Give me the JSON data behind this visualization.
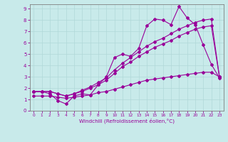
{
  "xlabel": "Windchill (Refroidissement éolien,°C)",
  "bg_color": "#c8eaea",
  "grid_color": "#b0d8d8",
  "line_color": "#990099",
  "xlim": [
    -0.5,
    23.5
  ],
  "ylim": [
    0,
    9.4
  ],
  "xticks": [
    0,
    1,
    2,
    3,
    4,
    5,
    6,
    7,
    8,
    9,
    10,
    11,
    12,
    13,
    14,
    15,
    16,
    17,
    18,
    19,
    20,
    21,
    22,
    23
  ],
  "yticks": [
    0,
    1,
    2,
    3,
    4,
    5,
    6,
    7,
    8,
    9
  ],
  "line1_x": [
    0,
    1,
    2,
    3,
    4,
    5,
    6,
    7,
    8,
    9,
    10,
    11,
    12,
    13,
    14,
    15,
    16,
    17,
    18,
    19,
    20,
    21,
    22,
    23
  ],
  "line1_y": [
    1.7,
    1.7,
    1.5,
    0.9,
    0.6,
    1.3,
    1.5,
    1.4,
    2.3,
    3.0,
    4.7,
    5.0,
    4.8,
    5.5,
    7.5,
    8.1,
    8.0,
    7.6,
    9.2,
    8.2,
    7.6,
    5.8,
    4.1,
    2.9
  ],
  "line2_x": [
    0,
    1,
    2,
    3,
    4,
    5,
    6,
    7,
    8,
    9,
    10,
    11,
    12,
    13,
    14,
    15,
    16,
    17,
    18,
    19,
    20,
    21,
    22,
    23
  ],
  "line2_y": [
    1.7,
    1.7,
    1.7,
    1.5,
    1.3,
    1.5,
    1.8,
    2.1,
    2.5,
    2.9,
    3.6,
    4.2,
    4.7,
    5.2,
    5.7,
    6.1,
    6.4,
    6.8,
    7.2,
    7.5,
    7.8,
    8.0,
    8.1,
    3.0
  ],
  "line3_x": [
    0,
    1,
    2,
    3,
    4,
    5,
    6,
    7,
    8,
    9,
    10,
    11,
    12,
    13,
    14,
    15,
    16,
    17,
    18,
    19,
    20,
    21,
    22,
    23
  ],
  "line3_y": [
    1.7,
    1.7,
    1.7,
    1.5,
    1.3,
    1.5,
    1.7,
    2.0,
    2.3,
    2.7,
    3.3,
    3.9,
    4.3,
    4.8,
    5.2,
    5.6,
    5.9,
    6.2,
    6.6,
    6.9,
    7.2,
    7.4,
    7.5,
    3.0
  ],
  "line4_x": [
    0,
    1,
    2,
    3,
    4,
    5,
    6,
    7,
    8,
    9,
    10,
    11,
    12,
    13,
    14,
    15,
    16,
    17,
    18,
    19,
    20,
    21,
    22,
    23
  ],
  "line4_y": [
    1.3,
    1.3,
    1.3,
    1.2,
    1.1,
    1.2,
    1.3,
    1.4,
    1.6,
    1.7,
    1.9,
    2.1,
    2.3,
    2.5,
    2.7,
    2.8,
    2.9,
    3.0,
    3.1,
    3.2,
    3.3,
    3.4,
    3.4,
    3.0
  ]
}
